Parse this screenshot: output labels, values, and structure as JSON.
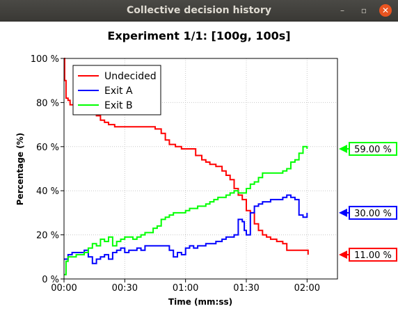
{
  "window": {
    "title": "Collective decision history",
    "minimize_glyph": "–",
    "maximize_glyph": "▫",
    "close_glyph": "✕"
  },
  "chart_data": {
    "type": "line",
    "title": "Experiment 1/1: [100g, 100s]",
    "xlabel": "Time (mm:ss)",
    "ylabel": "Percentage (%)",
    "xlim": [
      0,
      135
    ],
    "ylim": [
      0,
      100
    ],
    "x_ticks": [
      0,
      30,
      60,
      90,
      120
    ],
    "x_tick_labels": [
      "00:00",
      "00:30",
      "01:00",
      "01:30",
      "02:00"
    ],
    "y_ticks": [
      0,
      20,
      40,
      60,
      80,
      100
    ],
    "y_tick_labels": [
      "0 %",
      "20 %",
      "40 %",
      "60 %",
      "80 %",
      "100 %"
    ],
    "grid": true,
    "legend_position": "top-left",
    "series": [
      {
        "name": "Undecided",
        "color": "#ff0000",
        "end_label": "11.00 %",
        "x": [
          0,
          0.3,
          1,
          2,
          3,
          5,
          8,
          12,
          14,
          16,
          18,
          20,
          22,
          25,
          30,
          35,
          40,
          45,
          48,
          50,
          52,
          55,
          58,
          60,
          62,
          65,
          68,
          70,
          72,
          75,
          78,
          80,
          82,
          84,
          86,
          88,
          90,
          92,
          94,
          96,
          98,
          100,
          102,
          105,
          108,
          110,
          115,
          120,
          120.5
        ],
        "y": [
          100,
          90,
          82,
          81,
          79,
          78,
          77,
          77,
          76,
          74,
          72,
          71,
          70,
          69,
          69,
          69,
          69,
          68,
          66,
          63,
          61,
          60,
          59,
          59,
          59,
          56,
          54,
          53,
          52,
          51,
          49,
          47,
          45,
          41,
          38,
          36,
          31,
          30,
          25,
          22,
          20,
          19,
          18,
          17,
          16,
          13,
          13,
          13,
          11
        ]
      },
      {
        "name": "Exit A",
        "color": "#0000ff",
        "end_label": "30.00 %",
        "x": [
          0,
          2,
          4,
          6,
          8,
          10,
          12,
          14,
          16,
          18,
          20,
          22,
          24,
          26,
          28,
          30,
          32,
          34,
          36,
          38,
          40,
          45,
          50,
          52,
          54,
          56,
          58,
          60,
          62,
          64,
          66,
          68,
          70,
          72,
          75,
          78,
          80,
          82,
          84,
          86,
          88,
          89,
          90,
          92,
          94,
          96,
          98,
          100,
          102,
          104,
          106,
          108,
          110,
          112,
          114,
          116,
          118,
          120
        ],
        "y": [
          9,
          11,
          12,
          12,
          12,
          13,
          10,
          7,
          9,
          10,
          11,
          9,
          12,
          13,
          14,
          12,
          13,
          13,
          14,
          13,
          15,
          15,
          15,
          13,
          10,
          12,
          11,
          14,
          15,
          14,
          15,
          15,
          16,
          16,
          17,
          18,
          19,
          19,
          20,
          27,
          26,
          22,
          20,
          30,
          33,
          34,
          35,
          35,
          36,
          36,
          36,
          37,
          38,
          37,
          36,
          29,
          28,
          30
        ]
      },
      {
        "name": "Exit B",
        "color": "#00ff00",
        "end_label": "59.00 %",
        "x": [
          0,
          1,
          2,
          4,
          6,
          8,
          10,
          12,
          14,
          16,
          18,
          20,
          22,
          24,
          26,
          28,
          30,
          32,
          34,
          36,
          38,
          40,
          42,
          44,
          46,
          48,
          50,
          52,
          54,
          56,
          58,
          60,
          62,
          64,
          66,
          68,
          70,
          72,
          74,
          76,
          78,
          80,
          82,
          84,
          86,
          88,
          90,
          92,
          94,
          96,
          98,
          100,
          102,
          104,
          106,
          108,
          110,
          112,
          114,
          116,
          118,
          120
        ],
        "y": [
          2,
          8,
          10,
          10,
          11,
          11,
          12,
          14,
          16,
          15,
          18,
          17,
          19,
          15,
          17,
          18,
          19,
          19,
          18,
          19,
          20,
          21,
          21,
          23,
          24,
          27,
          28,
          29,
          30,
          30,
          30,
          31,
          32,
          32,
          33,
          33,
          34,
          35,
          36,
          37,
          37,
          38,
          39,
          40,
          39,
          39,
          41,
          43,
          44,
          46,
          48,
          48,
          48,
          48,
          48,
          49,
          50,
          53,
          54,
          57,
          60,
          59
        ]
      }
    ]
  }
}
